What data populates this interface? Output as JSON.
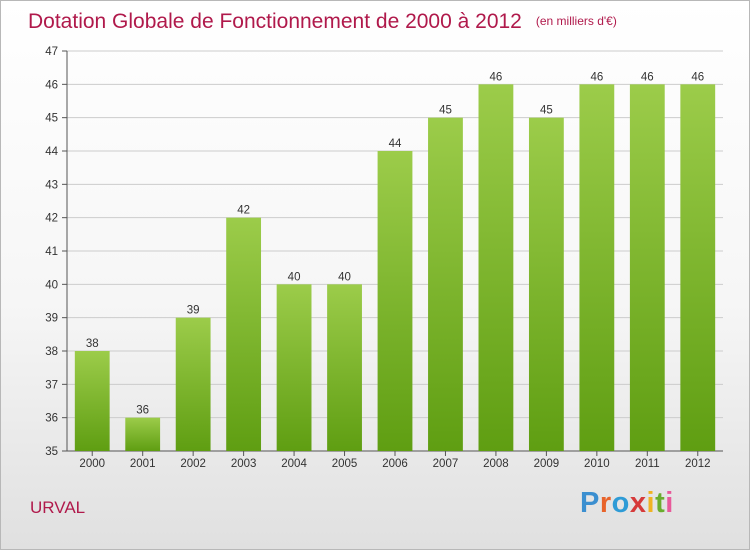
{
  "title": {
    "main": "Dotation Globale de Fonctionnement de 2000 à 2012",
    "unit": "(en milliers d'€)"
  },
  "commune": "URVAL",
  "brand": {
    "text": "Proxiti",
    "letter_colors": [
      "#3b8fd0",
      "#e8632a",
      "#2e9bd6",
      "#d63a3a",
      "#f0b323",
      "#6aad2e",
      "#e85a9a"
    ]
  },
  "colors": {
    "title": "#b0194b",
    "bar_top": "#9ccc4a",
    "bar_bottom": "#5f9e12",
    "grid": "#cccccc"
  },
  "chart_data": {
    "type": "bar",
    "categories": [
      "2000",
      "2001",
      "2002",
      "2003",
      "2004",
      "2005",
      "2006",
      "2007",
      "2008",
      "2009",
      "2010",
      "2011",
      "2012"
    ],
    "values": [
      38,
      36,
      39,
      42,
      40,
      40,
      44,
      45,
      46,
      45,
      46,
      46,
      46
    ],
    "ylim": [
      35,
      47
    ],
    "yticks": [
      35,
      36,
      37,
      38,
      39,
      40,
      41,
      42,
      43,
      44,
      45,
      46,
      47
    ],
    "grid": true,
    "data_labels": true
  }
}
